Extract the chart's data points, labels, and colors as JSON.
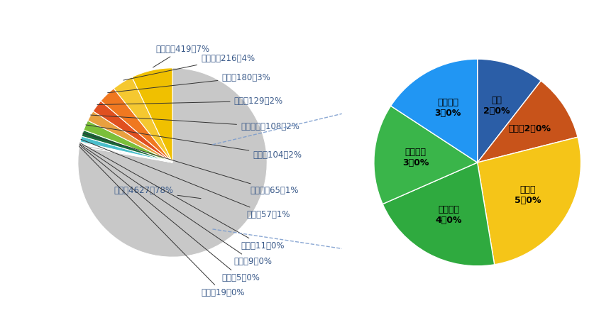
{
  "main_labels": [
    "美国",
    "其他",
    "法国",
    "日本",
    "巴西",
    "英国",
    "爱尔兰",
    "荷兰",
    "保加利亚",
    "德国",
    "瑞典",
    "新加坡",
    "奥地利"
  ],
  "main_values": [
    4627,
    19,
    5,
    9,
    11,
    57,
    65,
    104,
    108,
    129,
    180,
    216,
    419
  ],
  "main_colors": [
    "#c8c8c8",
    "#b8b8b8",
    "#b8b8b8",
    "#b8b8b8",
    "#b8b8b8",
    "#4bbfcc",
    "#1a6b3a",
    "#7bbf3a",
    "#e8a040",
    "#e05020",
    "#f07820",
    "#f5c830",
    "#f0c000"
  ],
  "main_pcts": [
    "78%",
    "0%",
    "0%",
    "0%",
    "0%",
    "1%",
    "1%",
    "2%",
    "2%",
    "2%",
    "3%",
    "4%",
    "7%"
  ],
  "sub_labels": [
    "芬兰",
    "捷克",
    "加拿大",
    "澳大利亚",
    "拉脱维亚",
    "塞浦路斯"
  ],
  "sub_values": [
    2,
    2,
    5,
    4,
    3,
    3
  ],
  "sub_colors": [
    "#2b5ea7",
    "#c8531a",
    "#f5c518",
    "#2faa3f",
    "#3ab54a",
    "#2196f3"
  ],
  "sub_label_texts": [
    "芬兰\n2，0%",
    "捷克，2，0%",
    "加拿大\n5，0%",
    "澳大利亚\n4，0%",
    "拉脱维亚\n3，0%",
    "塞浦路斯\n3，0%"
  ],
  "bg_color": "#ffffff",
  "label_color": "#3a5a8a",
  "line_color": "#000000",
  "dash_color": "#7799cc"
}
